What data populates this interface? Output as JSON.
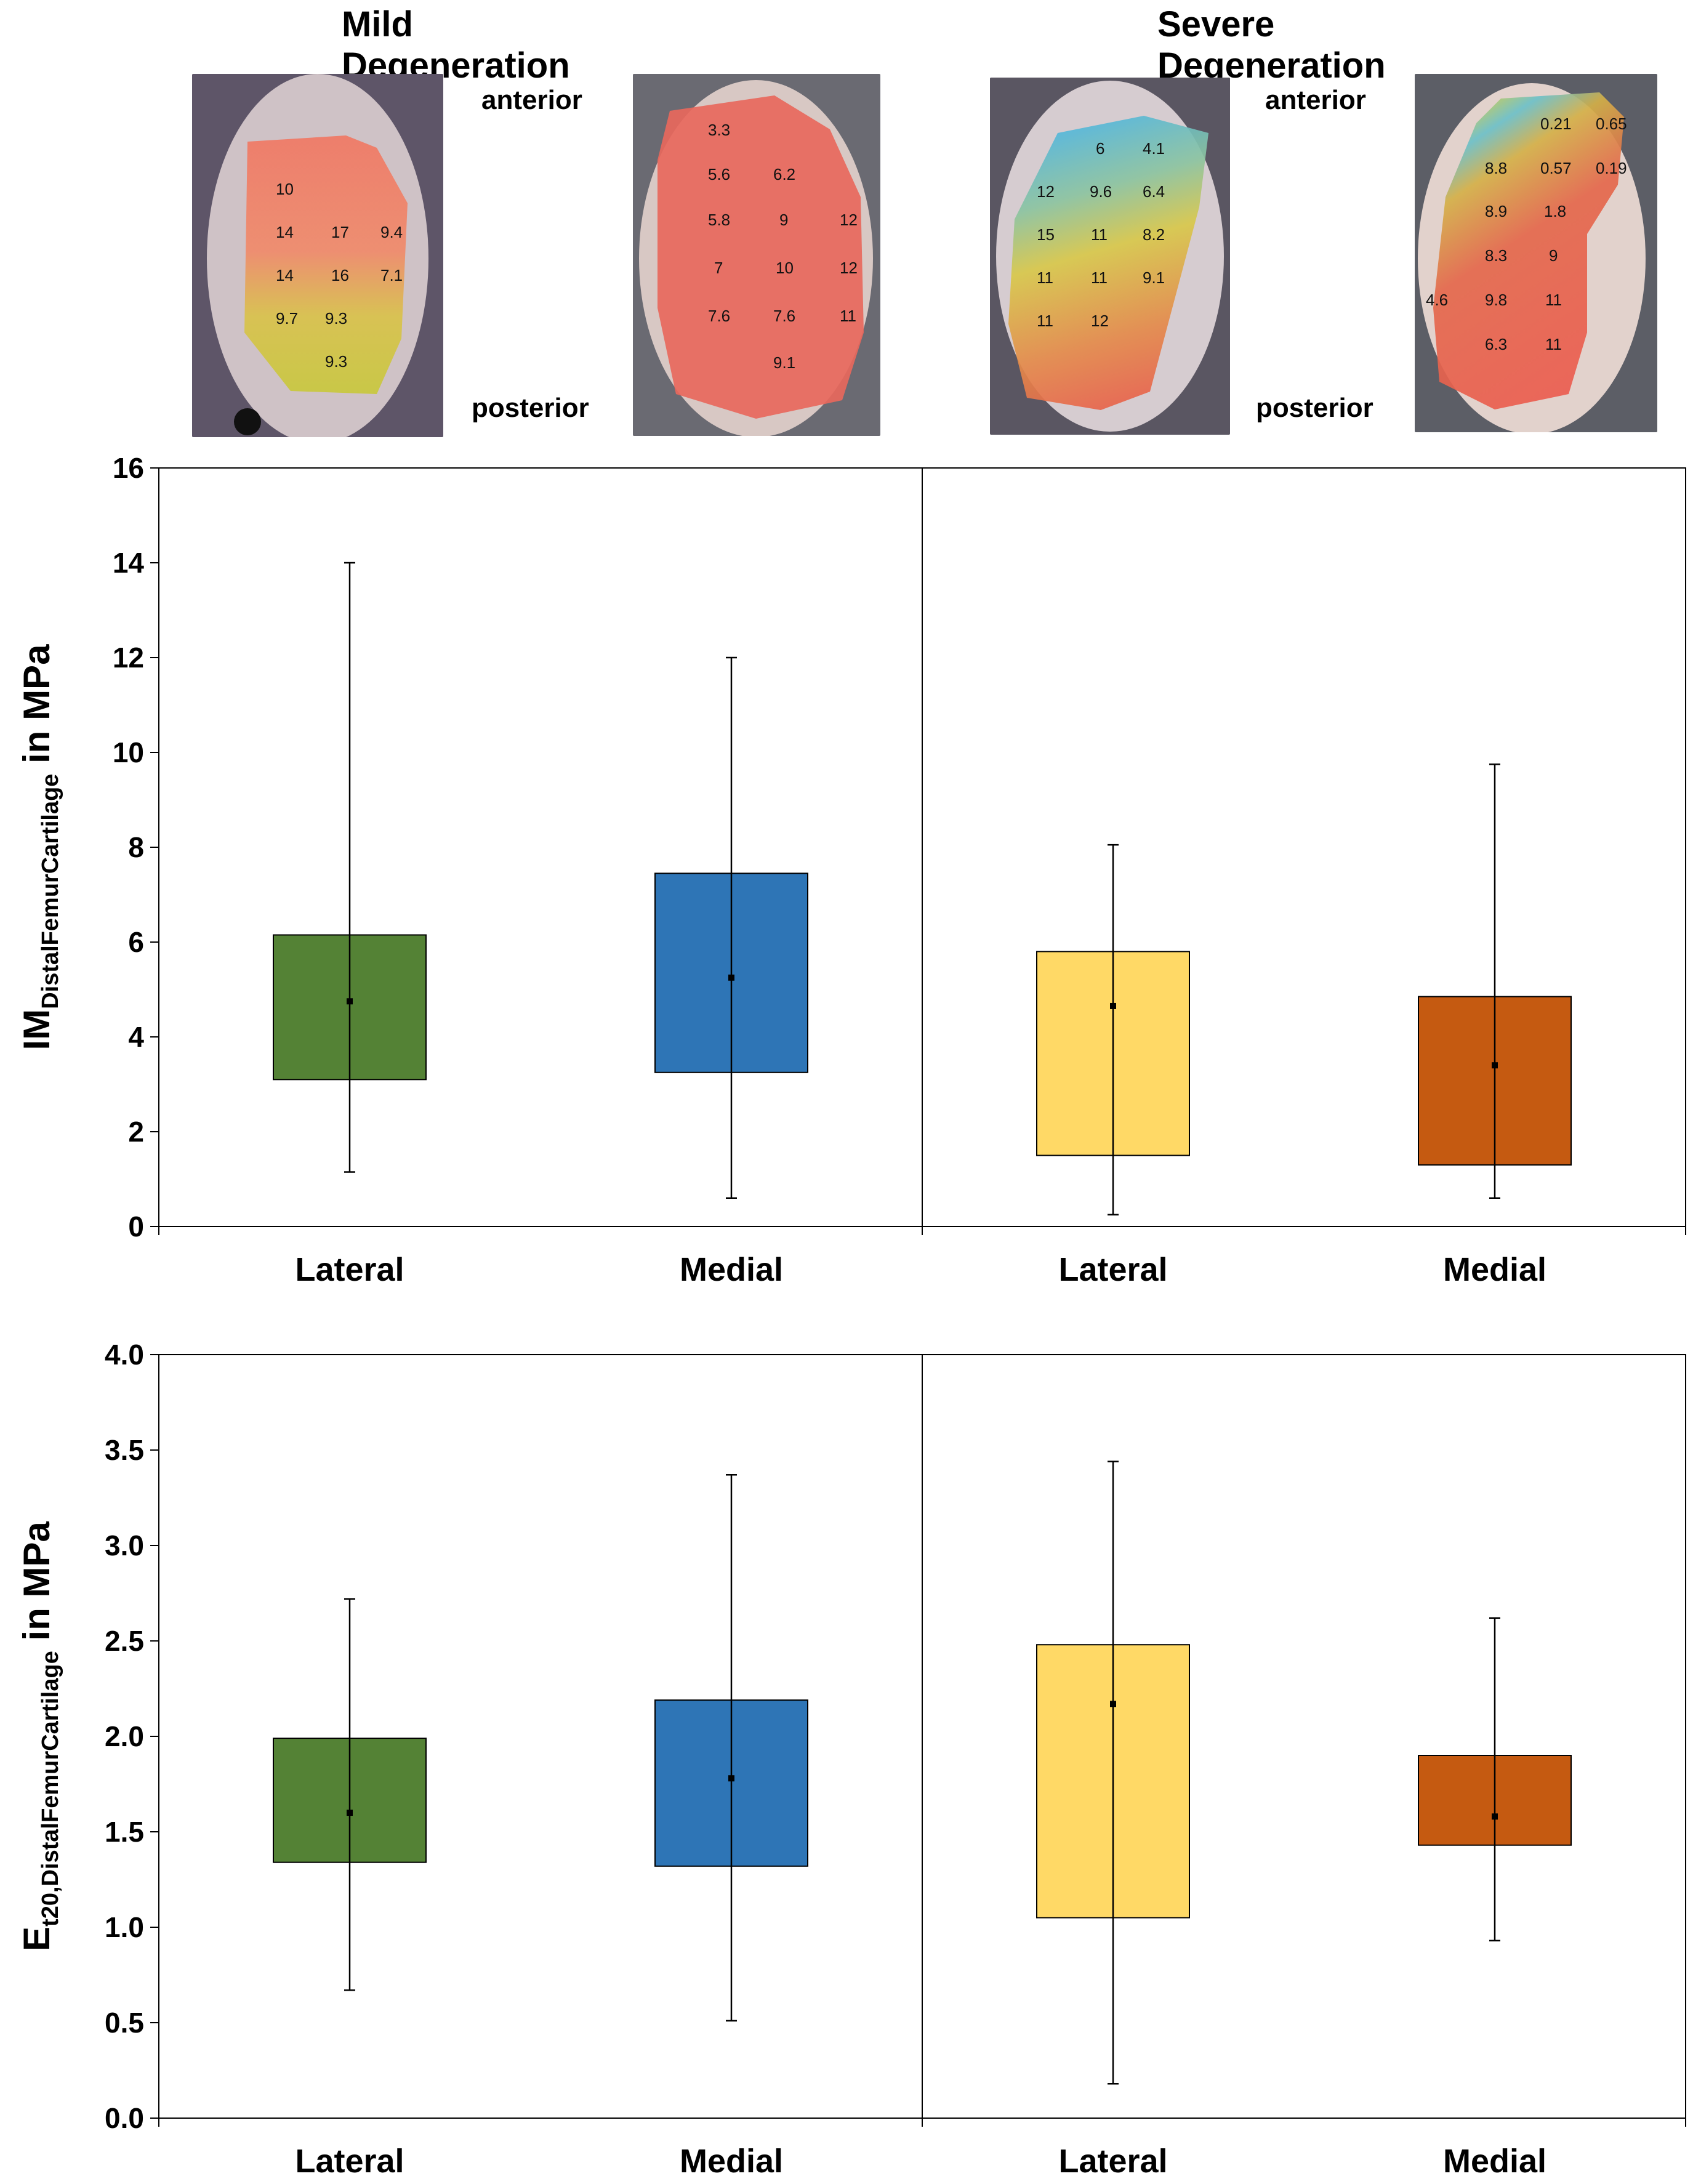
{
  "headers": {
    "mild": "Mild Degeneration",
    "severe": "Severe Degeneration"
  },
  "orientation": {
    "mild_anterior": "anterior",
    "mild_posterior": "posterior",
    "severe_anterior": "anterior",
    "severe_posterior": "posterior"
  },
  "photos": [
    {
      "name": "mild-lateral",
      "values": [
        "10",
        "14",
        "17",
        "9.4",
        "14",
        "16",
        "7.1",
        "9.7",
        "9.3",
        "9.3"
      ]
    },
    {
      "name": "mild-medial",
      "values": [
        "3.3",
        "5.6",
        "6.2",
        "5.8",
        "9",
        "12",
        "7",
        "10",
        "12",
        "7.6",
        "7.6",
        "11",
        "9.1"
      ]
    },
    {
      "name": "severe-lateral",
      "values": [
        "6",
        "4.1",
        "12",
        "9.6",
        "6.4",
        "15",
        "11",
        "8.2",
        "11",
        "11",
        "9.1",
        "11",
        "12"
      ]
    },
    {
      "name": "severe-medial",
      "values": [
        "0.21",
        "0.65",
        "8.8",
        "0.57",
        "0.19",
        "8.9",
        "1.8",
        "8.3",
        "9",
        "4.6",
        "9.8",
        "11",
        "6.3",
        "11"
      ]
    }
  ],
  "colors": {
    "mild_lateral": "#548235",
    "mild_medial": "#2E75B6",
    "severe_lateral": "#FFD966",
    "severe_medial": "#C55A11"
  },
  "chart_data": [
    {
      "type": "bar",
      "title": "",
      "ylabel_main": "IM",
      "ylabel_sub": "DistalFemurCartilage",
      "ylabel_unit": " in MPa",
      "ylim": [
        0,
        16
      ],
      "yticks": [
        "0",
        "2",
        "4",
        "6",
        "8",
        "10",
        "12",
        "14",
        "16"
      ],
      "categories": [
        "Lateral",
        "Medial",
        "Lateral",
        "Medial"
      ],
      "groups": [
        "Mild Degeneration",
        "Severe Degeneration"
      ],
      "boxes": [
        {
          "q1": 3.1,
          "q3": 6.15,
          "median": 4.75,
          "min": 1.15,
          "max": 14.0
        },
        {
          "q1": 3.25,
          "q3": 7.45,
          "median": 5.25,
          "min": 0.6,
          "max": 12.0
        },
        {
          "q1": 1.5,
          "q3": 5.8,
          "median": 4.65,
          "min": 0.25,
          "max": 8.05
        },
        {
          "q1": 1.3,
          "q3": 4.85,
          "median": 3.4,
          "min": 0.6,
          "max": 9.75
        }
      ]
    },
    {
      "type": "bar",
      "title": "",
      "ylabel_main": "E",
      "ylabel_sub": "t20,DistalFemurCartilage",
      "ylabel_unit": " in MPa",
      "ylim": [
        0,
        4
      ],
      "yticks": [
        "0.0",
        "0.5",
        "1.0",
        "1.5",
        "2.0",
        "2.5",
        "3.0",
        "3.5",
        "4.0"
      ],
      "categories": [
        "Lateral",
        "Medial",
        "Lateral",
        "Medial"
      ],
      "groups": [
        "Mild Degeneration",
        "Severe Degeneration"
      ],
      "boxes": [
        {
          "q1": 1.34,
          "q3": 1.99,
          "median": 1.6,
          "min": 0.67,
          "max": 2.72
        },
        {
          "q1": 1.32,
          "q3": 2.19,
          "median": 1.78,
          "min": 0.51,
          "max": 3.37
        },
        {
          "q1": 1.05,
          "q3": 2.48,
          "median": 2.17,
          "min": 0.18,
          "max": 3.44
        },
        {
          "q1": 1.43,
          "q3": 1.9,
          "median": 1.58,
          "min": 0.93,
          "max": 2.62
        }
      ]
    }
  ]
}
